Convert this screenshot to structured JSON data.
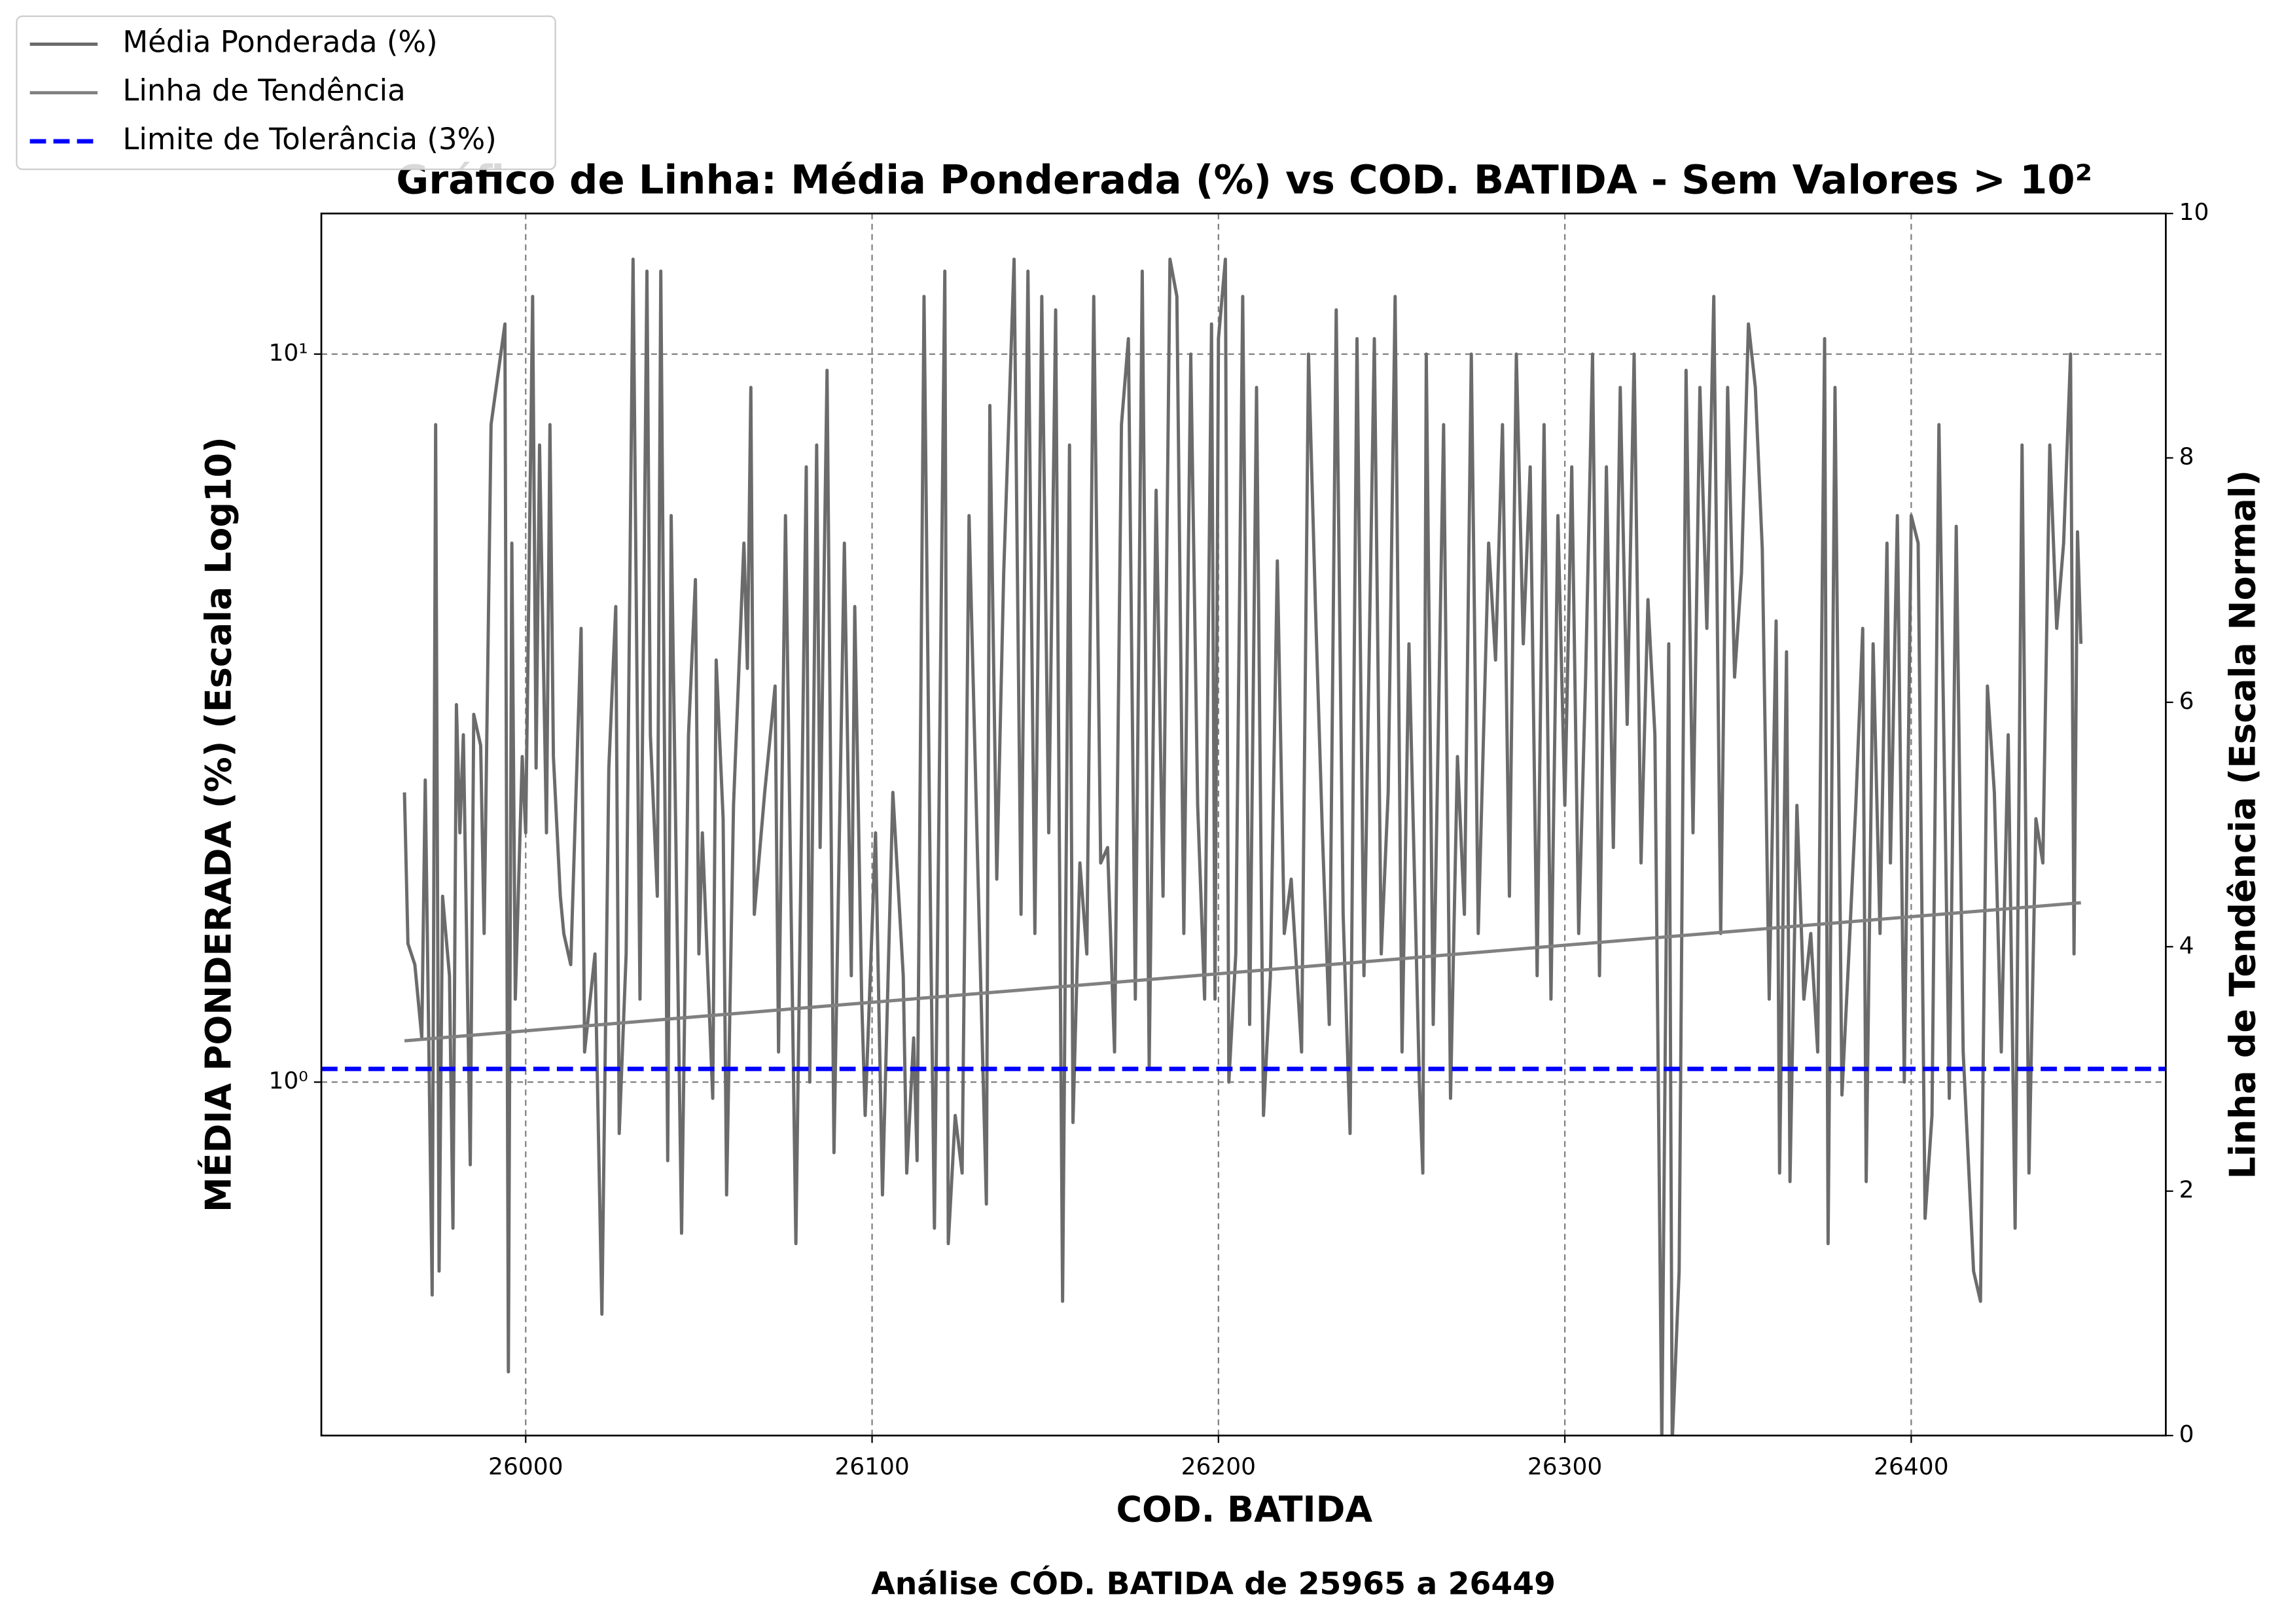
{
  "chart_data": {
    "type": "line",
    "title": "Gráfico de Linha: Média Ponderada (%) vs COD. BATIDA - Sem Valores > 10²",
    "subtitle": "Análise CÓD. BATIDA de 25965 a 26449",
    "xlabel": "COD. BATIDA",
    "ylabel": "MÉDIA PONDERADA (%) (Escala Log10)",
    "y2label": "Linha de Tendência (Escala Normal)",
    "xlim": [
      25941,
      26473.5
    ],
    "xticks": [
      26000,
      26100,
      26200,
      26300,
      26400
    ],
    "ylim": [
      0.327,
      15.6
    ],
    "yscale": "log",
    "yticks": [
      {
        "value": 1,
        "label": "10⁰"
      },
      {
        "value": 10,
        "label": "10¹"
      }
    ],
    "y2lim": [
      0,
      10
    ],
    "y2ticks": [
      0,
      2,
      4,
      6,
      8,
      10
    ],
    "grid": true,
    "legend": "upper left",
    "series": [
      {
        "name": "Média Ponderada (%)",
        "color": "#6b6b6b",
        "x": [
          25965,
          25966,
          25968,
          25970,
          25971,
          25973,
          25974,
          25975,
          25976,
          25978,
          25979,
          25980,
          25981,
          25982,
          25984,
          25985,
          25987,
          25988,
          25990,
          25994,
          25995,
          25996,
          25997,
          25999,
          26000,
          26002,
          26003,
          26004,
          26006,
          26007,
          26008,
          26010,
          26011,
          26013,
          26016,
          26017,
          26020,
          26022,
          26024,
          26026,
          26027,
          26029,
          26031,
          26033,
          26035,
          26036,
          26038,
          26039,
          26041,
          26042,
          26045,
          26047,
          26049,
          26050,
          26051,
          26054,
          26055,
          26057,
          26058,
          26060,
          26063,
          26064,
          26065,
          26066,
          26069,
          26072,
          26073,
          26075,
          26078,
          26081,
          26082,
          26084,
          26085,
          26087,
          26089,
          26092,
          26094,
          26095,
          26097,
          26098,
          26101,
          26103,
          26106,
          26109,
          26110,
          26112,
          26113,
          26115,
          26117,
          26118,
          26121,
          26122,
          26124,
          26126,
          26128,
          26131,
          26133,
          26134,
          26136,
          26138,
          26141,
          26143,
          26145,
          26147,
          26149,
          26151,
          26153,
          26155,
          26157,
          26158,
          26160,
          26162,
          26164,
          26166,
          26168,
          26170,
          26172,
          26174,
          26176,
          26178,
          26180,
          26182,
          26184,
          26186,
          26188,
          26190,
          26192,
          26194,
          26196,
          26198,
          26199,
          26200,
          26202,
          26203,
          26205,
          26207,
          26209,
          26211,
          26213,
          26215,
          26217,
          26219,
          26221,
          26224,
          26226,
          26228,
          26230,
          26232,
          26234,
          26236,
          26238,
          26240,
          26242,
          26245,
          26247,
          26249,
          26251,
          26253,
          26255,
          26258,
          26259,
          26260,
          26262,
          26265,
          26267,
          26269,
          26271,
          26273,
          26275,
          26278,
          26280,
          26282,
          26284,
          26286,
          26288,
          26290,
          26292,
          26294,
          26296,
          26298,
          26300,
          26302,
          26304,
          26306,
          26308,
          26310,
          26312,
          26314,
          26316,
          26318,
          26320,
          26322,
          26324,
          26326,
          26328,
          26330,
          26331,
          26333,
          26335,
          26337,
          26339,
          26341,
          26343,
          26345,
          26347,
          26349,
          26351,
          26353,
          26355,
          26357,
          26359,
          26361,
          26362,
          26364,
          26365,
          26367,
          26369,
          26371,
          26373,
          26375,
          26376,
          26378,
          26380,
          26382,
          26384,
          26386,
          26387,
          26389,
          26391,
          26393,
          26394,
          26396,
          26398,
          26400,
          26402,
          26404,
          26406,
          26408,
          26410,
          26411,
          26413,
          26415,
          26418,
          26420,
          26422,
          26424,
          26426,
          26428,
          26430,
          26432,
          26434,
          26436,
          26438,
          26440,
          26442,
          26444,
          26446,
          26447,
          26448,
          26449
        ],
        "values": [
          2.5,
          1.55,
          1.45,
          1.15,
          2.6,
          0.51,
          8,
          0.55,
          1.8,
          1.4,
          0.63,
          3.3,
          2.2,
          3.0,
          0.77,
          3.2,
          2.9,
          1.6,
          8,
          11,
          0.4,
          5.5,
          1.3,
          2.8,
          2.2,
          12,
          2.7,
          7.5,
          2.2,
          8,
          2.8,
          1.8,
          1.6,
          1.45,
          4.2,
          1.1,
          1.5,
          0.48,
          2.7,
          4.5,
          0.85,
          1.5,
          13.5,
          1.3,
          13,
          3,
          1.8,
          13,
          0.78,
          6,
          0.62,
          3,
          4.9,
          1.5,
          2.2,
          0.95,
          3.8,
          2.3,
          0.7,
          2.4,
          5.5,
          3.7,
          9,
          1.7,
          2.5,
          3.5,
          1.1,
          6,
          0.6,
          7,
          1,
          7.5,
          2.1,
          9.5,
          0.8,
          5.5,
          1.4,
          4.5,
          1.3,
          0.9,
          2.2,
          0.7,
          2.5,
          1.4,
          0.75,
          1.15,
          0.78,
          12,
          1.5,
          0.63,
          13,
          0.6,
          0.9,
          0.75,
          6,
          1.6,
          0.68,
          8.5,
          1.9,
          5,
          13.5,
          1.7,
          13,
          1.6,
          12,
          2.2,
          11.5,
          0.5,
          7.5,
          0.88,
          2,
          1.5,
          12,
          2,
          2.1,
          1.1,
          8,
          10.5,
          1.3,
          13,
          1.05,
          6.5,
          1.8,
          13.5,
          12,
          1.6,
          10,
          2.4,
          1.3,
          11,
          1.3,
          10.5,
          13.5,
          1,
          1.5,
          12,
          1.2,
          9,
          0.9,
          1.4,
          5.2,
          1.6,
          1.9,
          1.1,
          10,
          4.5,
          2.2,
          1.2,
          11.5,
          1.7,
          0.85,
          10.5,
          1.4,
          10.5,
          1.5,
          2.5,
          12,
          1.1,
          4,
          1,
          0.75,
          10,
          1.2,
          8,
          0.95,
          2.8,
          1.7,
          10,
          1.6,
          5.5,
          3.8,
          8,
          1.8,
          10,
          4,
          7,
          1.4,
          8,
          1.3,
          6,
          2.4,
          7,
          1.6,
          3.6,
          10,
          1.4,
          7,
          2.1,
          9,
          3.1,
          10,
          2,
          4.6,
          3,
          0.32,
          4,
          0.32,
          0.55,
          9.5,
          2.2,
          9,
          4.2,
          12,
          1.6,
          9,
          3.6,
          5,
          11,
          9,
          5.4,
          1.3,
          4.3,
          0.75,
          3.9,
          0.73,
          2.4,
          1.3,
          1.6,
          1.1,
          10.5,
          0.6,
          9,
          0.96,
          1.5,
          2.4,
          4.2,
          0.73,
          4,
          1.6,
          5.5,
          2,
          6,
          1,
          6,
          5.5,
          0.65,
          0.9,
          8,
          2,
          0.95,
          5.8,
          1.1,
          0.55,
          0.5,
          3.5,
          2.5,
          1.1,
          3,
          0.63,
          7.5,
          0.75,
          2.3,
          2,
          7.5,
          4.2,
          5.5,
          10,
          1.5,
          5.7,
          4
        ]
      },
      {
        "name": "Linha de Tendência",
        "color": "#808080",
        "axis": "y2",
        "x": [
          25965,
          26449
        ],
        "values": [
          3.23,
          4.36
        ]
      },
      {
        "name": "Limite de Tolerância (3%)",
        "color": "#0000ff",
        "axis": "y2",
        "dashed": true,
        "y": 3
      }
    ]
  }
}
